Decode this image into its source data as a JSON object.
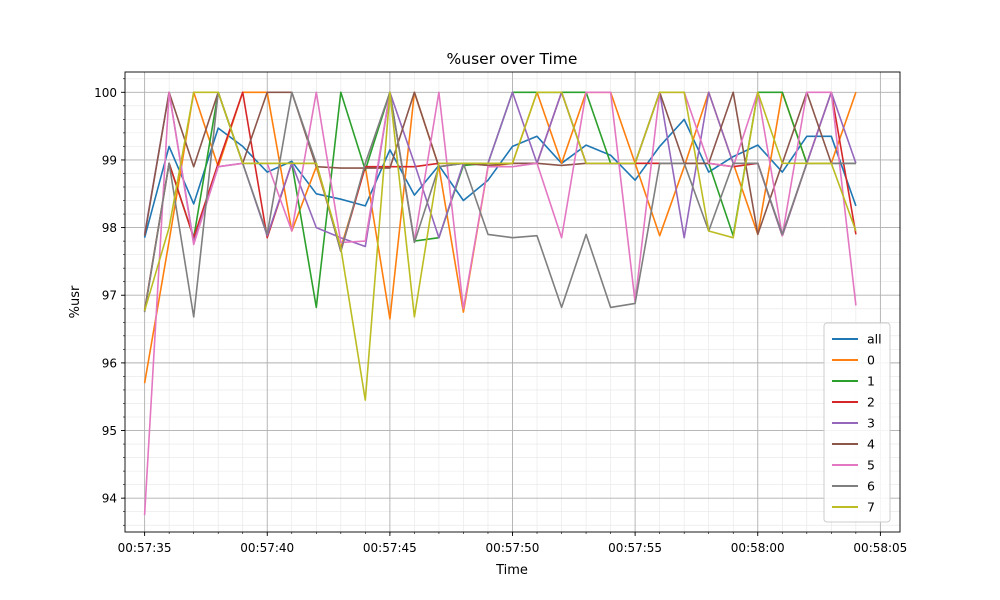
{
  "chart_data": {
    "type": "line",
    "title": "%user over Time",
    "xlabel": "Time",
    "ylabel": "%usr",
    "x": [
      "00:57:35",
      "00:57:36",
      "00:57:37",
      "00:57:38",
      "00:57:39",
      "00:57:40",
      "00:57:41",
      "00:57:42",
      "00:57:43",
      "00:57:44",
      "00:57:45",
      "00:57:46",
      "00:57:47",
      "00:57:48",
      "00:57:49",
      "00:57:50",
      "00:57:51",
      "00:57:52",
      "00:57:53",
      "00:57:54",
      "00:57:55",
      "00:57:56",
      "00:57:57",
      "00:57:58",
      "00:57:59",
      "00:58:00",
      "00:58:01",
      "00:58:02",
      "00:58:03",
      "00:58:04"
    ],
    "x_ticks": [
      "00:57:35",
      "00:57:40",
      "00:57:45",
      "00:57:50",
      "00:57:55",
      "00:58:00",
      "00:58:05"
    ],
    "xlim": [
      "00:57:34.2",
      "00:58:05.8"
    ],
    "ylim": [
      93.5,
      100.3
    ],
    "y_ticks": [
      94,
      95,
      96,
      97,
      98,
      99,
      100
    ],
    "grid": true,
    "legend_position": "lower-right",
    "series": [
      {
        "name": "all",
        "color": "#1f77b4",
        "values": [
          97.85,
          99.2,
          98.35,
          99.47,
          99.2,
          98.82,
          98.98,
          98.5,
          98.42,
          98.32,
          99.15,
          98.48,
          98.92,
          98.4,
          98.7,
          99.2,
          99.35,
          98.95,
          99.22,
          99.07,
          98.7,
          99.2,
          99.6,
          98.82,
          99.05,
          99.22,
          98.82,
          99.35,
          99.35,
          98.32
        ]
      },
      {
        "name": "0",
        "color": "#ff7f0e",
        "values": [
          95.7,
          97.8,
          100,
          98.9,
          100,
          100,
          97.95,
          98.9,
          97.7,
          98.9,
          96.65,
          100,
          98.9,
          96.75,
          98.9,
          98.95,
          100,
          98.95,
          100,
          100,
          98.95,
          97.88,
          98.9,
          100,
          98.95,
          97.9,
          100,
          98.95,
          98.95,
          100
        ]
      },
      {
        "name": "1",
        "color": "#2ca02c",
        "values": [
          96.77,
          98.95,
          97.85,
          100,
          98.95,
          98.95,
          98.95,
          96.82,
          100,
          98.85,
          100,
          97.8,
          97.85,
          98.92,
          98.95,
          100,
          100,
          100,
          100,
          98.95,
          98.95,
          98.95,
          98.95,
          98.95,
          97.88,
          100,
          100,
          98.95,
          98.95,
          98.95
        ]
      },
      {
        "name": "2",
        "color": "#d62728",
        "values": [
          96.77,
          98.95,
          97.85,
          98.95,
          100,
          97.85,
          98.95,
          98.95,
          97.65,
          98.9,
          98.9,
          98.9,
          98.95,
          98.95,
          98.95,
          98.95,
          98.95,
          100,
          98.95,
          98.95,
          98.95,
          98.95,
          98.95,
          98.95,
          98.9,
          98.95,
          97.88,
          98.95,
          100,
          97.9
        ]
      },
      {
        "name": "3",
        "color": "#9467bd",
        "values": [
          97.9,
          100,
          97.78,
          98.9,
          98.95,
          97.88,
          98.95,
          98.0,
          97.85,
          97.72,
          100,
          98.95,
          97.85,
          98.95,
          98.95,
          100,
          98.95,
          100,
          98.95,
          98.95,
          98.95,
          100,
          97.85,
          100,
          98.95,
          98.95,
          97.88,
          98.95,
          100,
          98.95
        ]
      },
      {
        "name": "4",
        "color": "#8c564b",
        "values": [
          97.88,
          100,
          98.9,
          100,
          98.95,
          100,
          100,
          98.9,
          98.88,
          98.88,
          98.88,
          100,
          98.9,
          98.95,
          98.92,
          98.95,
          98.95,
          98.92,
          98.95,
          98.95,
          98.95,
          100,
          98.95,
          98.95,
          100,
          97.9,
          98.95,
          100,
          98.95,
          98.95
        ]
      },
      {
        "name": "5",
        "color": "#e377c2",
        "values": [
          93.75,
          100,
          97.75,
          98.9,
          98.95,
          98.95,
          97.95,
          100,
          97.78,
          97.8,
          100,
          97.8,
          100,
          96.8,
          98.9,
          98.9,
          98.95,
          97.85,
          100,
          100,
          96.9,
          100,
          100,
          98.95,
          98.9,
          100,
          97.88,
          100,
          100,
          96.85
        ]
      },
      {
        "name": "6",
        "color": "#7f7f7f",
        "values": [
          96.75,
          98.95,
          96.68,
          100,
          98.95,
          97.9,
          100,
          98.95,
          97.65,
          98.95,
          100,
          97.78,
          98.9,
          98.95,
          97.9,
          97.85,
          97.88,
          96.82,
          97.9,
          96.82,
          96.88,
          98.95,
          98.95,
          97.95,
          98.95,
          98.95,
          97.9,
          98.95,
          98.95,
          98.95
        ]
      },
      {
        "name": "7",
        "color": "#bcbd22",
        "values": [
          96.77,
          98.0,
          100,
          100,
          98.95,
          98.95,
          98.95,
          98.95,
          97.7,
          95.45,
          100,
          96.68,
          98.95,
          98.95,
          98.95,
          98.95,
          100,
          100,
          98.95,
          98.95,
          98.95,
          100,
          100,
          97.95,
          97.85,
          100,
          98.95,
          98.95,
          98.95,
          97.95
        ]
      }
    ]
  }
}
